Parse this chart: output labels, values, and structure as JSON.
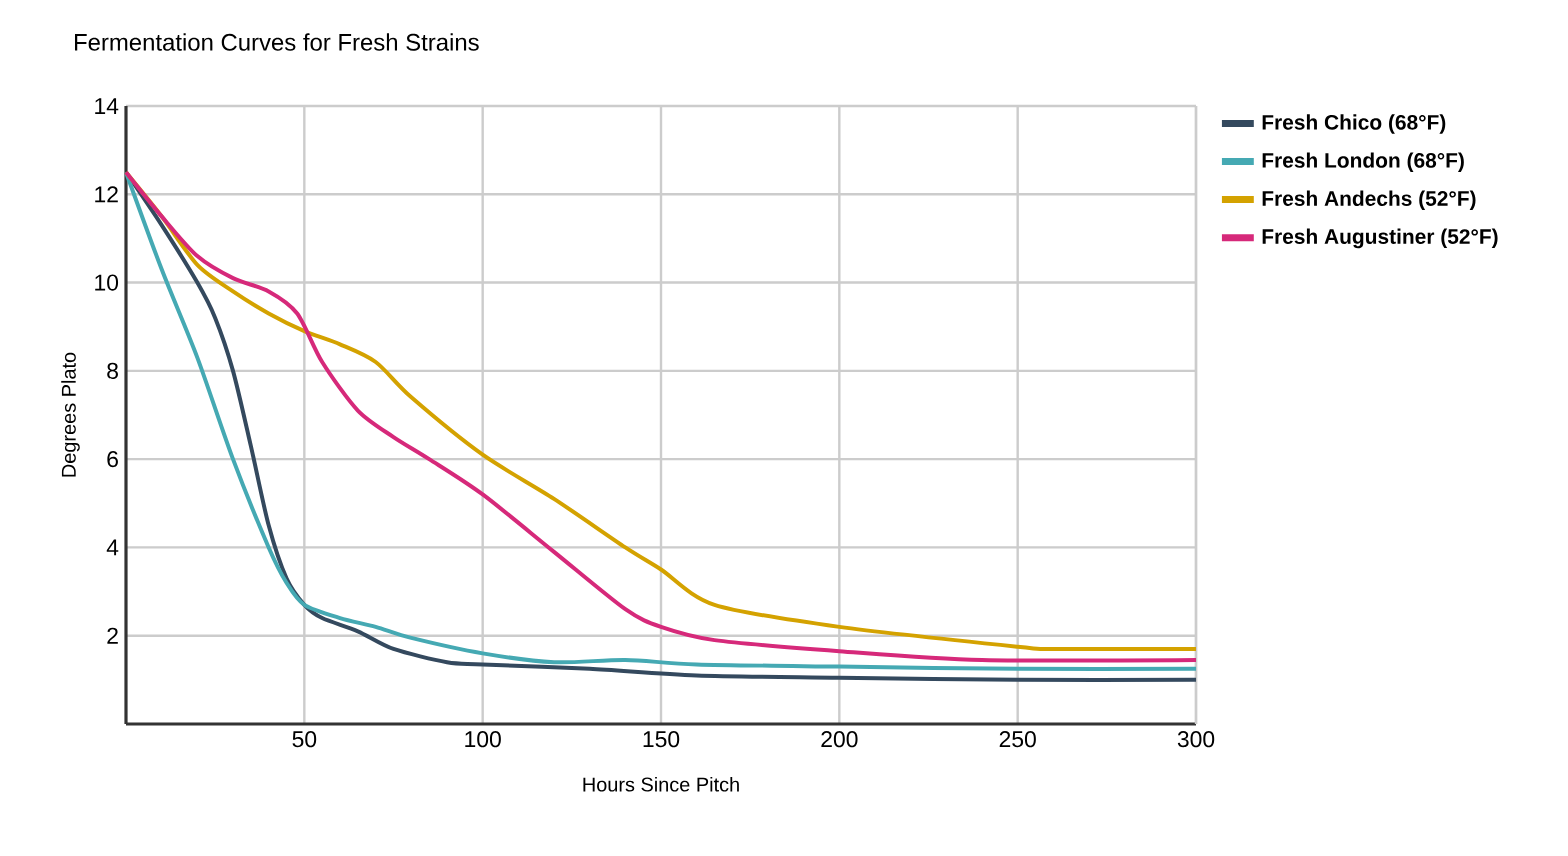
{
  "chart_data": {
    "type": "line",
    "title": "Fermentation Curves for Fresh Strains",
    "xlabel": "Hours Since Pitch",
    "ylabel": "Degrees Plato",
    "xlim": [
      0,
      300
    ],
    "ylim": [
      0,
      14
    ],
    "xticks": [
      50,
      100,
      150,
      200,
      250,
      300
    ],
    "yticks": [
      2,
      4,
      6,
      8,
      10,
      12,
      14
    ],
    "grid": true,
    "legend": "right",
    "marker": "none",
    "line_style": "solid",
    "series": [
      {
        "name": "Fresh Chico (68°F)",
        "color": "#34495e",
        "x": [
          0,
          10,
          20,
          25,
          30,
          35,
          40,
          45,
          50,
          55,
          65,
          75,
          90,
          100,
          130,
          160,
          200,
          250,
          300
        ],
        "values": [
          12.5,
          11.3,
          10,
          9.2,
          8,
          6.3,
          4.5,
          3.3,
          2.7,
          2.4,
          2.1,
          1.7,
          1.4,
          1.35,
          1.25,
          1.1,
          1.05,
          1.0,
          1.0
        ]
      },
      {
        "name": "Fresh London (68°F)",
        "color": "#45a9b3",
        "x": [
          0,
          10,
          20,
          30,
          40,
          45,
          50,
          60,
          70,
          80,
          100,
          120,
          140,
          160,
          200,
          250,
          300
        ],
        "values": [
          12.5,
          10.3,
          8.3,
          6,
          4,
          3.2,
          2.7,
          2.4,
          2.2,
          1.95,
          1.6,
          1.4,
          1.45,
          1.35,
          1.3,
          1.25,
          1.25
        ]
      },
      {
        "name": "Fresh Andechs (52°F)",
        "color": "#d4a200",
        "x": [
          0,
          10,
          20,
          30,
          40,
          50,
          60,
          70,
          80,
          100,
          120,
          140,
          150,
          165,
          200,
          250,
          260,
          300
        ],
        "values": [
          12.5,
          11.5,
          10.4,
          9.8,
          9.3,
          8.9,
          8.6,
          8.2,
          7.4,
          6.1,
          5.1,
          4.0,
          3.5,
          2.7,
          2.2,
          1.75,
          1.7,
          1.7
        ]
      },
      {
        "name": "Fresh Augustiner (52°F)",
        "color": "#d6297a",
        "x": [
          0,
          10,
          20,
          30,
          40,
          48,
          55,
          65,
          75,
          85,
          100,
          120,
          140,
          150,
          165,
          200,
          240,
          300
        ],
        "values": [
          12.5,
          11.5,
          10.6,
          10.1,
          9.8,
          9.3,
          8.2,
          7.1,
          6.5,
          6.0,
          5.2,
          3.9,
          2.6,
          2.2,
          1.9,
          1.65,
          1.45,
          1.45
        ]
      }
    ]
  }
}
